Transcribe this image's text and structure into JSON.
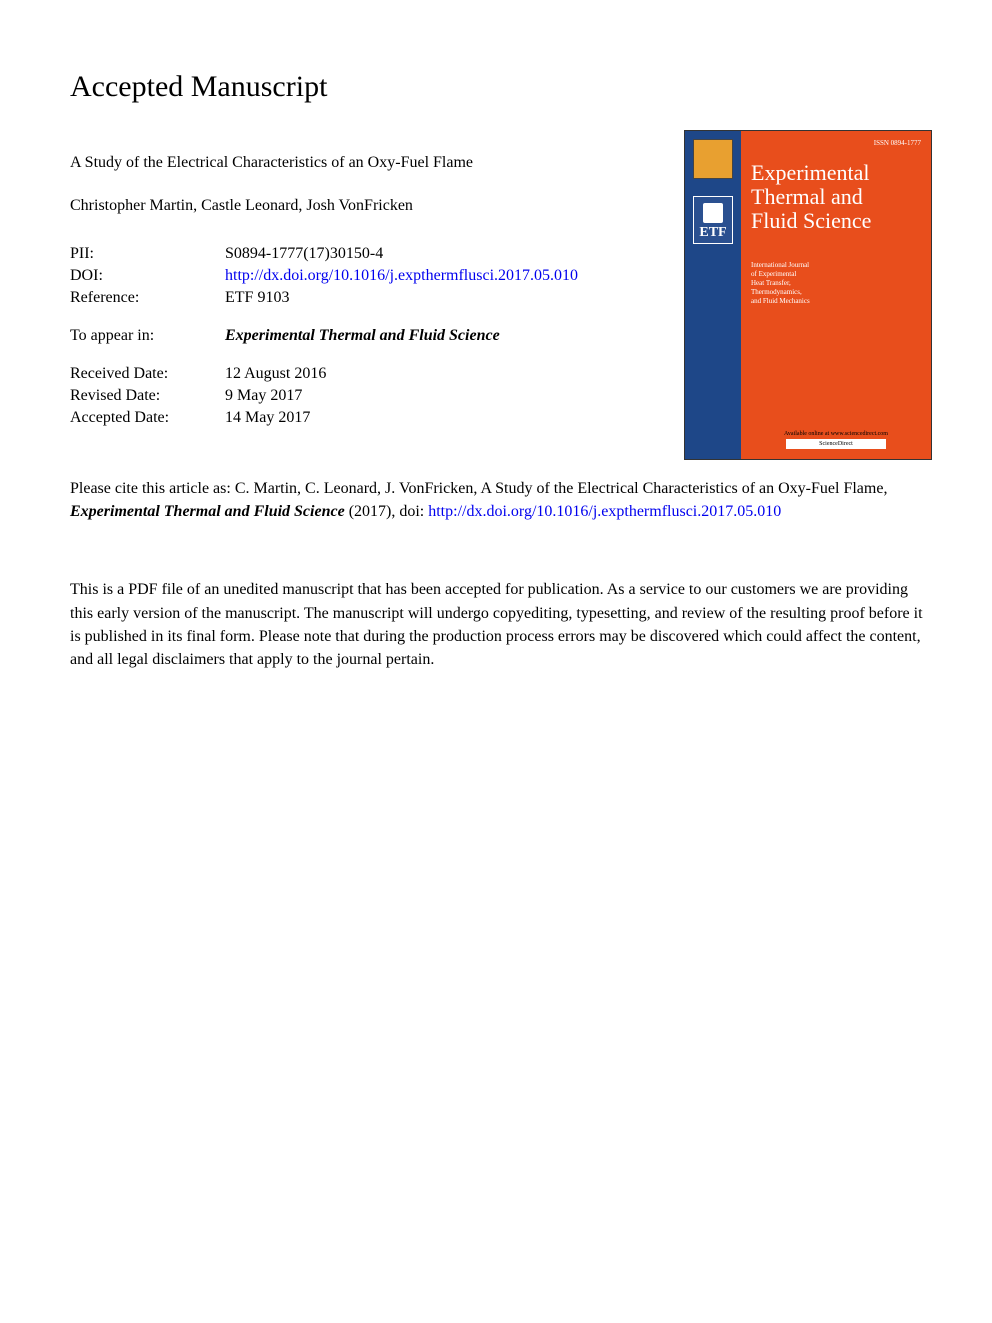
{
  "header": {
    "title": "Accepted Manuscript"
  },
  "paper": {
    "title": "A Study of the Electrical Characteristics of an Oxy-Fuel Flame",
    "authors": "Christopher Martin, Castle Leonard, Josh VonFricken"
  },
  "meta": {
    "pii_label": "PII:",
    "pii_value": "S0894-1777(17)30150-4",
    "doi_label": "DOI:",
    "doi_url": "http://dx.doi.org/10.1016/j.expthermflusci.2017.05.010",
    "reference_label": "Reference:",
    "reference_value": "ETF 9103",
    "appear_label": "To appear in:",
    "appear_value": "Experimental Thermal and Fluid Science",
    "received_label": "Received Date:",
    "received_value": "12 August 2016",
    "revised_label": "Revised Date:",
    "revised_value": "9 May 2017",
    "accepted_label": "Accepted Date:",
    "accepted_value": "14 May 2017"
  },
  "citation": {
    "prefix": "Please cite this article as: C. Martin, C. Leonard, J. VonFricken, A Study of the Electrical Characteristics of an Oxy-Fuel Flame, ",
    "journal": "Experimental Thermal and Fluid Science",
    "year": " (2017), doi: ",
    "link_text": "http://dx.doi.org/10.1016/j.expthermflusci.2017.05.010",
    "link_href": "http://dx.doi.org/10.1016/j.expthermflusci.2017.05.010"
  },
  "disclaimer": "This is a PDF file of an unedited manuscript that has been accepted for publication. As a service to our customers we are providing this early version of the manuscript. The manuscript will undergo copyediting, typesetting, and review of the resulting proof before it is published in its final form. Please note that during the production process errors may be discovered which could affect the content, and all legal disclaimers that apply to the journal pertain.",
  "cover": {
    "journal_title_line1": "Experimental",
    "journal_title_line2": "Thermal and",
    "journal_title_line3": "Fluid Science",
    "subtitle_line1": "International Journal",
    "subtitle_line2": "of Experimental",
    "subtitle_line3": "Heat Transfer,",
    "subtitle_line4": "Thermodynamics,",
    "subtitle_line5": "and Fluid Mechanics",
    "etf_label": "ETF",
    "issn": "ISSN 0894-1777",
    "footer_line": "Available online at www.sciencedirect.com",
    "footer_bar": "ScienceDirect",
    "background_color": "#e84e1c",
    "band_color": "#1e4788",
    "text_color": "#ffffff"
  }
}
